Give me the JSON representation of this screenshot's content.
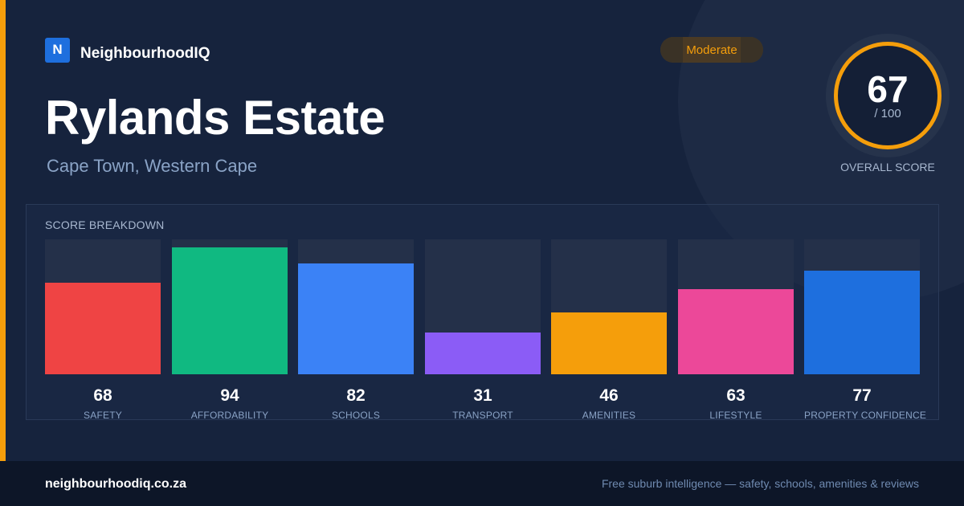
{
  "brand": {
    "logo_letter": "N",
    "name": "NeighbourhoodIQ"
  },
  "suburb": {
    "name": "Rylands Estate",
    "location": "Cape Town, Western Cape"
  },
  "badge": {
    "label": "Moderate"
  },
  "overall": {
    "value": "67",
    "max_label": "/ 100",
    "label": "OVERALL SCORE",
    "ring_color": "#f59e0b"
  },
  "breakdown": {
    "title": "SCORE BREAKDOWN",
    "scale_max": 100,
    "categories": [
      {
        "label": "SAFETY",
        "value": 68,
        "color": "#ef4444"
      },
      {
        "label": "AFFORDABILITY",
        "value": 94,
        "color": "#10b981"
      },
      {
        "label": "SCHOOLS",
        "value": 82,
        "color": "#3b82f6"
      },
      {
        "label": "TRANSPORT",
        "value": 31,
        "color": "#8b5cf6"
      },
      {
        "label": "AMENITIES",
        "value": 46,
        "color": "#f59e0b"
      },
      {
        "label": "LIFESTYLE",
        "value": 63,
        "color": "#ec4899"
      },
      {
        "label": "PROPERTY CONFIDENCE",
        "value": 77,
        "color": "#1e6fde"
      }
    ]
  },
  "footer": {
    "url": "neighbourhoodiq.co.za",
    "tagline": "Free suburb intelligence — safety, schools, amenities & reviews"
  }
}
